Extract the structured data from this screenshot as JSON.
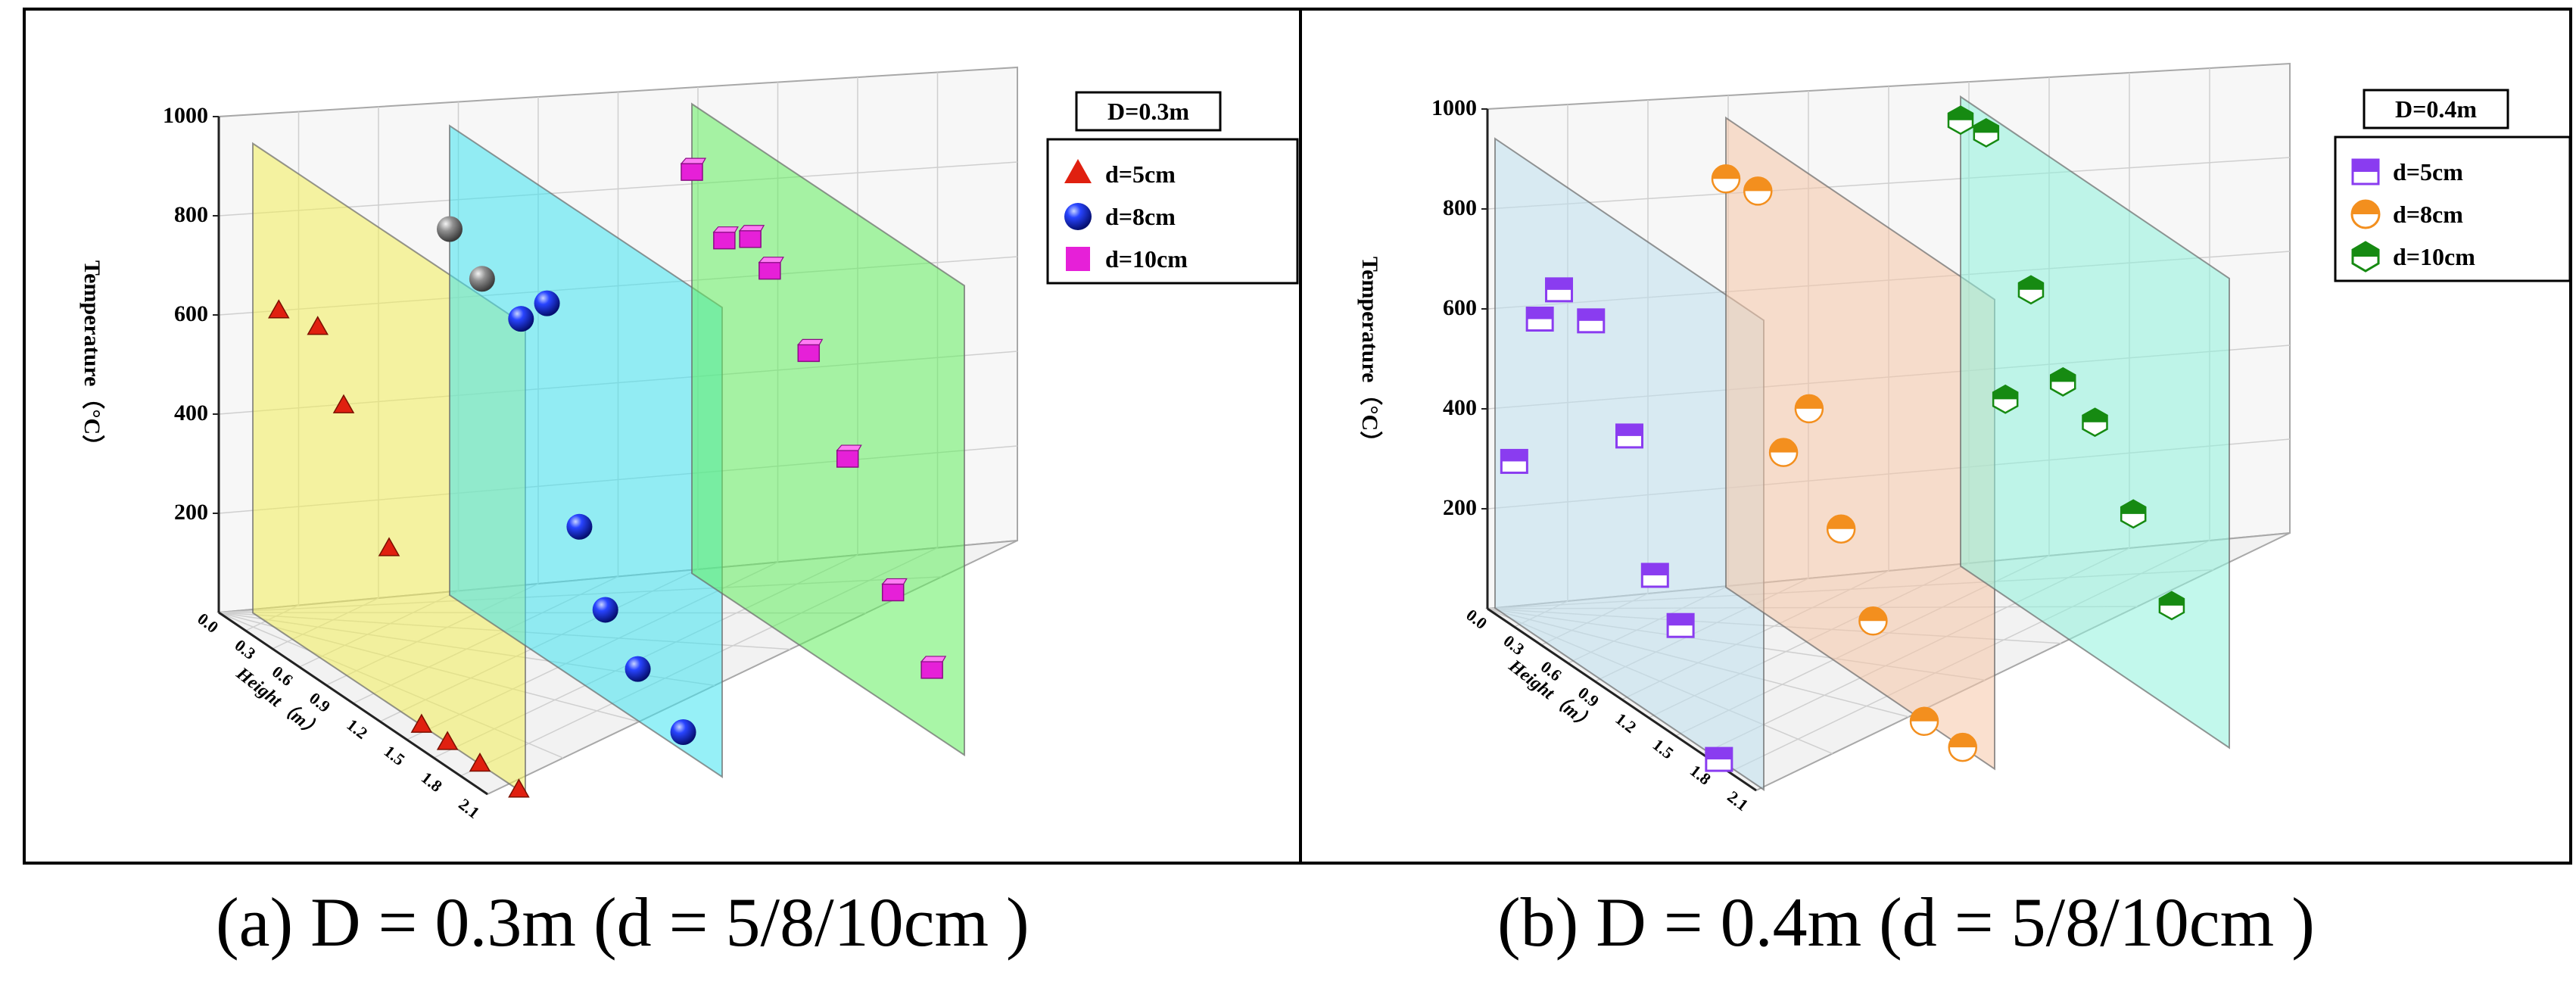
{
  "chart_data": [
    {
      "type": "scatter",
      "panel_label": "(a) D = 0.3m (d = 5/8/10cm )",
      "title": "D=0.3m",
      "zlabel": "Temperature（°C）",
      "ylabel": "Height（m）",
      "zlim": [
        0,
        1000
      ],
      "z_ticks": [
        "1000",
        "800",
        "600",
        "400",
        "200"
      ],
      "y_ticks": [
        "0.0",
        "0.3",
        "0.6",
        "0.9",
        "1.2",
        "1.5",
        "1.8",
        "2.1"
      ],
      "grid": true,
      "legend_position": "top-right",
      "colors": {
        "plane1": "#f2ef5a",
        "plane2": "#3fe3f0",
        "plane3": "#62ee5e",
        "d5": "#e02010",
        "d8": "#1430d8",
        "d10": "#e620d8"
      },
      "series": [
        {
          "name": "d=5cm",
          "marker": "triangle",
          "color": "#e02010",
          "plane": 1,
          "points": [
            [
              0.2,
              680
            ],
            [
              0.5,
              700
            ],
            [
              0.7,
              570
            ],
            [
              1.05,
              330
            ],
            [
              1.3,
              0
            ],
            [
              1.5,
              0
            ],
            [
              1.75,
              0
            ],
            [
              2.05,
              0
            ]
          ]
        },
        {
          "name": "d=8cm",
          "marker": "sphere",
          "color": "#1430d8",
          "plane": 2,
          "points": [
            [
              0.0,
              780,
              "gray"
            ],
            [
              0.25,
              720,
              "gray"
            ],
            [
              0.55,
              690
            ],
            [
              0.75,
              760
            ],
            [
              1.0,
              330
            ],
            [
              1.2,
              190
            ],
            [
              1.45,
              110
            ],
            [
              1.8,
              40
            ]
          ]
        },
        {
          "name": "d=10cm",
          "marker": "square",
          "color": "#e620d8",
          "plane": 3,
          "points": [
            [
              0.0,
              860
            ],
            [
              0.25,
              760
            ],
            [
              0.45,
              800
            ],
            [
              0.6,
              760
            ],
            [
              0.9,
              640
            ],
            [
              1.2,
              470
            ],
            [
              1.55,
              250
            ],
            [
              1.85,
              140
            ]
          ]
        }
      ]
    },
    {
      "type": "scatter",
      "panel_label": "(b) D = 0.4m (d = 5/8/10cm )",
      "title": "D=0.4m",
      "zlabel": "Temperature（°C）",
      "ylabel": "Height（m）",
      "zlim": [
        0,
        1000
      ],
      "z_ticks": [
        "1000",
        "800",
        "600",
        "400",
        "200"
      ],
      "y_ticks": [
        "0.0",
        "0.3",
        "0.6",
        "0.9",
        "1.2",
        "1.5",
        "1.8",
        "2.1"
      ],
      "grid": true,
      "legend_position": "top-right",
      "colors": {
        "plane1": "#bfe0ef",
        "plane2": "#f6c6a8",
        "plane3": "#8ff2dc",
        "d5": "#8a3cf0",
        "d8": "#f38f1e",
        "d10": "#168a12"
      },
      "series": [
        {
          "name": "d=5cm",
          "marker": "half-square",
          "color": "#8a3cf0",
          "plane": 1,
          "points": [
            [
              0.15,
              340
            ],
            [
              0.35,
              680
            ],
            [
              0.5,
              770
            ],
            [
              0.75,
              750
            ],
            [
              1.05,
              560
            ],
            [
              1.25,
              300
            ],
            [
              1.45,
              230
            ],
            [
              1.75,
              0
            ]
          ]
        },
        {
          "name": "d=8cm",
          "marker": "half-circle",
          "color": "#f38f1e",
          "plane": 2,
          "points": [
            [
              0.0,
              870
            ],
            [
              0.25,
              890
            ],
            [
              0.45,
              370
            ],
            [
              0.65,
              500
            ],
            [
              0.9,
              290
            ],
            [
              1.15,
              140
            ],
            [
              1.55,
              0
            ],
            [
              1.85,
              0
            ]
          ]
        },
        {
          "name": "d=10cm",
          "marker": "hexagon",
          "color": "#168a12",
          "plane": 3,
          "points": [
            [
              0.0,
              950
            ],
            [
              0.2,
              960
            ],
            [
              0.35,
              420
            ],
            [
              0.55,
              690
            ],
            [
              0.8,
              540
            ],
            [
              1.05,
              500
            ],
            [
              1.35,
              360
            ],
            [
              1.65,
              220
            ]
          ]
        }
      ]
    }
  ]
}
